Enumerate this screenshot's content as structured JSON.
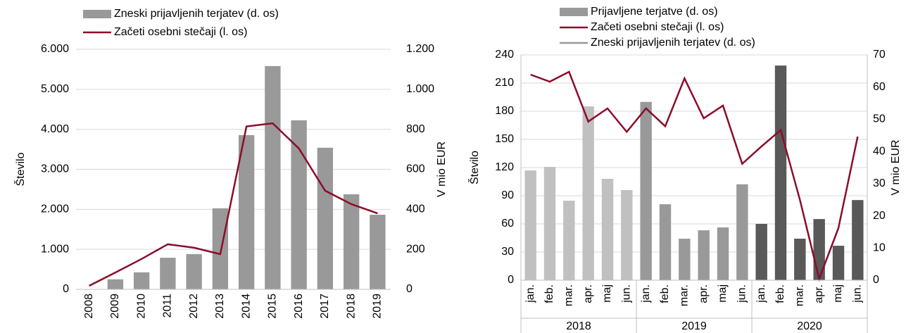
{
  "chart_data": [
    {
      "type": "combo",
      "ylabel": "Število",
      "y2label": "V mio EUR",
      "categories": [
        "2008",
        "2009",
        "2010",
        "2011",
        "2012",
        "2013",
        "2014",
        "2015",
        "2016",
        "2017",
        "2018",
        "2019"
      ],
      "series": [
        {
          "name": "Zneski prijavljenih terjatev (d. os)",
          "type": "bar",
          "axis": "y2",
          "color": "#999999",
          "values": [
            0,
            50,
            85,
            158,
            176,
            405,
            771,
            1116,
            845,
            708,
            475,
            373
          ]
        },
        {
          "name": "Začeti osebni stečaji (l. os)",
          "type": "line",
          "axis": "y",
          "color": "#8b0d2a",
          "values": [
            88,
            420,
            760,
            1127,
            1040,
            880,
            4070,
            4150,
            3520,
            2465,
            2130,
            1900
          ]
        }
      ],
      "ylim": [
        0,
        6000
      ],
      "yticks": [
        0,
        {
          "value": 1000,
          "label": "1.000"
        },
        {
          "value": 2000,
          "label": "2.000"
        },
        {
          "value": 3000,
          "label": "3.000"
        },
        {
          "value": 4000,
          "label": "4.000"
        },
        {
          "value": 5000,
          "label": "5.000"
        },
        {
          "value": 6000,
          "label": "6.000"
        }
      ],
      "y2lim": [
        0,
        1200
      ],
      "y2ticks": [
        0,
        200,
        400,
        600,
        800,
        {
          "value": 1000,
          "label": "1.000"
        },
        {
          "value": 1200,
          "label": "1.200"
        }
      ],
      "grid": true
    },
    {
      "type": "combo",
      "ylabel": "Število",
      "y2label": "V mio EUR",
      "categories": [
        "jan.",
        "feb.",
        "mar.",
        "apr.",
        "maj",
        "jun.",
        "jan.",
        "feb.",
        "mar.",
        "apr.",
        "maj",
        "jun.",
        "jan.",
        "feb.",
        "mar.",
        "apr.",
        "maj",
        "jun."
      ],
      "groups": [
        {
          "label": "2018",
          "span": 6
        },
        {
          "label": "2019",
          "span": 6
        },
        {
          "label": "2020",
          "span": 6
        }
      ],
      "series": [
        {
          "name": "Prijavljene terjatve (d. os)",
          "type": "bar",
          "axis": "y2",
          "color": "#999999",
          "colors": [
            "#c0c0c0",
            "#c0c0c0",
            "#c0c0c0",
            "#c0c0c0",
            "#c0c0c0",
            "#c0c0c0",
            "#999999",
            "#999999",
            "#999999",
            "#999999",
            "#999999",
            "#999999",
            "#595959",
            "#595959",
            "#595959",
            "#595959",
            "#595959",
            "#595959"
          ],
          "values": [
            34.1,
            35.2,
            24.7,
            54.0,
            31.5,
            28.0,
            55.4,
            23.6,
            12.9,
            15.5,
            16.4,
            29.8,
            17.5,
            66.7,
            12.9,
            19.0,
            10.7,
            24.9
          ]
        },
        {
          "name": "Začeti osebni stečaji (l. os)",
          "type": "line",
          "axis": "y",
          "color": "#8b0d2a",
          "values": [
            219,
            211.5,
            222,
            169,
            183,
            158,
            183,
            164,
            215,
            172.5,
            186,
            124,
            142.5,
            160,
            85.5,
            1.5,
            55.5,
            153
          ]
        }
      ],
      "extra_legend": [
        {
          "name": "Zneski prijavljenih terjatev (d. os)",
          "color": "#999999"
        }
      ],
      "ylim": [
        0,
        240
      ],
      "yticks": [
        0,
        30,
        60,
        90,
        120,
        150,
        180,
        210,
        240
      ],
      "y2lim": [
        0,
        70
      ],
      "y2ticks": [
        0,
        10,
        20,
        30,
        40,
        50,
        60,
        70
      ],
      "grid": true
    }
  ]
}
